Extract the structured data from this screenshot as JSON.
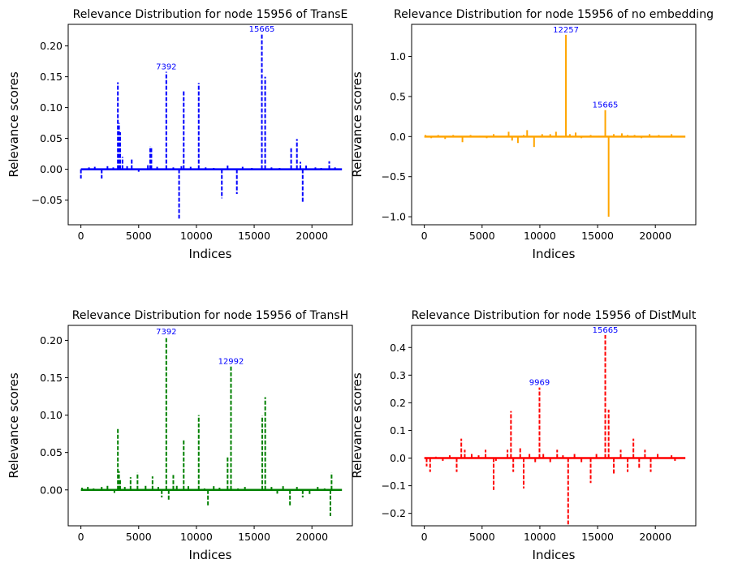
{
  "chart_data": [
    {
      "type": "line",
      "title": "Relevance Distribution for node  15956 of TransE",
      "xlabel": "Indices",
      "ylabel": "Relevance scores",
      "xlim": [
        -1100,
        23500
      ],
      "ylim": [
        -0.09,
        0.235
      ],
      "xticks": [
        0,
        5000,
        10000,
        15000,
        20000
      ],
      "yticks": [
        -0.05,
        0.0,
        0.05,
        0.1,
        0.15,
        0.2
      ],
      "ytick_labels": [
        "−0.05",
        "0.00",
        "0.05",
        "0.10",
        "0.15",
        "0.20"
      ],
      "color": "#0000ff",
      "line_style": "dashed",
      "x_max": 22600,
      "spikes": [
        [
          0,
          -0.015
        ],
        [
          700,
          0.003
        ],
        [
          1200,
          0.004
        ],
        [
          1800,
          -0.015
        ],
        [
          2300,
          0.005
        ],
        [
          2800,
          0.003
        ],
        [
          3200,
          0.141
        ],
        [
          3300,
          0.075
        ],
        [
          3400,
          0.06
        ],
        [
          3600,
          0.02
        ],
        [
          4000,
          0.005
        ],
        [
          4400,
          0.017
        ],
        [
          5000,
          -0.004
        ],
        [
          5800,
          0.008
        ],
        [
          6000,
          0.037
        ],
        [
          6100,
          0.035
        ],
        [
          6600,
          0.004
        ],
        [
          7392,
          0.158
        ],
        [
          8000,
          0.003
        ],
        [
          8500,
          -0.08
        ],
        [
          8700,
          0.005
        ],
        [
          8900,
          0.128
        ],
        [
          9500,
          0.004
        ],
        [
          10200,
          0.14
        ],
        [
          10800,
          0.003
        ],
        [
          11500,
          0.002
        ],
        [
          12200,
          -0.047
        ],
        [
          12700,
          0.006
        ],
        [
          13500,
          -0.04
        ],
        [
          14000,
          0.004
        ],
        [
          14800,
          0.002
        ],
        [
          15665,
          0.22
        ],
        [
          15950,
          0.15
        ],
        [
          16500,
          0.003
        ],
        [
          17200,
          0.002
        ],
        [
          18200,
          0.034
        ],
        [
          18700,
          0.049
        ],
        [
          19000,
          0.012
        ],
        [
          19200,
          -0.055
        ],
        [
          19500,
          0.006
        ],
        [
          20300,
          0.003
        ],
        [
          20800,
          0.002
        ],
        [
          21500,
          0.013
        ],
        [
          22000,
          0.003
        ]
      ],
      "annotations": [
        {
          "text": "7392",
          "x": 7392,
          "y": 0.158
        },
        {
          "text": "15665",
          "x": 15665,
          "y": 0.22
        }
      ]
    },
    {
      "type": "line",
      "title": "Relevance Distribution for node  15956 of no embedding",
      "xlabel": "Indices",
      "ylabel": "Relevance scores",
      "xlim": [
        -1100,
        23500
      ],
      "ylim": [
        -1.1,
        1.4
      ],
      "xticks": [
        0,
        5000,
        10000,
        15000,
        20000
      ],
      "yticks": [
        -1.0,
        -0.5,
        0.0,
        0.5,
        1.0
      ],
      "ytick_labels": [
        "−1.0",
        "−0.5",
        "0.0",
        "0.5",
        "1.0"
      ],
      "color": "#ffa500",
      "line_style": "solid",
      "x_max": 22600,
      "spikes": [
        [
          100,
          0.02
        ],
        [
          600,
          -0.02
        ],
        [
          1200,
          0.02
        ],
        [
          1800,
          -0.03
        ],
        [
          2500,
          0.02
        ],
        [
          3300,
          -0.07
        ],
        [
          4000,
          0.02
        ],
        [
          4800,
          0.01
        ],
        [
          5400,
          -0.02
        ],
        [
          6000,
          0.03
        ],
        [
          7300,
          0.06
        ],
        [
          7600,
          -0.05
        ],
        [
          8100,
          -0.08
        ],
        [
          8600,
          0.02
        ],
        [
          8900,
          0.08
        ],
        [
          9500,
          -0.13
        ],
        [
          10200,
          0.03
        ],
        [
          10900,
          0.03
        ],
        [
          11400,
          0.06
        ],
        [
          12257,
          1.27
        ],
        [
          12600,
          0.03
        ],
        [
          13100,
          0.05
        ],
        [
          13600,
          -0.02
        ],
        [
          14400,
          0.02
        ],
        [
          15100,
          0.01
        ],
        [
          15665,
          0.33
        ],
        [
          15956,
          -1.0
        ],
        [
          16400,
          0.03
        ],
        [
          17100,
          0.04
        ],
        [
          17600,
          0.02
        ],
        [
          18200,
          0.02
        ],
        [
          18800,
          -0.02
        ],
        [
          19500,
          0.03
        ],
        [
          20300,
          0.02
        ],
        [
          21400,
          0.03
        ]
      ],
      "annotations": [
        {
          "text": "12257",
          "x": 12257,
          "y": 1.27
        },
        {
          "text": "15665",
          "x": 15665,
          "y": 0.33
        }
      ]
    },
    {
      "type": "line",
      "title": "Relevance Distribution for node  15956 of TransH",
      "xlabel": "Indices",
      "ylabel": "Relevance scores",
      "xlim": [
        -1100,
        23500
      ],
      "ylim": [
        -0.048,
        0.22
      ],
      "xticks": [
        0,
        5000,
        10000,
        15000,
        20000
      ],
      "yticks": [
        0.0,
        0.05,
        0.1,
        0.15,
        0.2
      ],
      "ytick_labels": [
        "0.00",
        "0.05",
        "0.10",
        "0.15",
        "0.20"
      ],
      "color": "#008000",
      "line_style": "dashed",
      "x_max": 22600,
      "spikes": [
        [
          100,
          0.003
        ],
        [
          600,
          0.004
        ],
        [
          1100,
          0.002
        ],
        [
          1800,
          0.004
        ],
        [
          2300,
          0.007
        ],
        [
          2900,
          -0.004
        ],
        [
          3200,
          0.083
        ],
        [
          3300,
          0.025
        ],
        [
          3400,
          0.015
        ],
        [
          3800,
          0.004
        ],
        [
          4300,
          0.017
        ],
        [
          4900,
          0.023
        ],
        [
          5600,
          0.006
        ],
        [
          6200,
          0.018
        ],
        [
          6700,
          0.004
        ],
        [
          7000,
          -0.01
        ],
        [
          7392,
          0.205
        ],
        [
          7600,
          -0.014
        ],
        [
          8000,
          0.02
        ],
        [
          8300,
          0.006
        ],
        [
          8900,
          0.067
        ],
        [
          9300,
          0.005
        ],
        [
          10200,
          0.1
        ],
        [
          10700,
          0.002
        ],
        [
          11000,
          -0.022
        ],
        [
          11500,
          0.005
        ],
        [
          12000,
          0.003
        ],
        [
          12700,
          0.045
        ],
        [
          12992,
          0.165
        ],
        [
          13600,
          0.002
        ],
        [
          14200,
          0.004
        ],
        [
          15700,
          0.099
        ],
        [
          15956,
          0.124
        ],
        [
          16500,
          0.004
        ],
        [
          17000,
          -0.005
        ],
        [
          17500,
          0.005
        ],
        [
          18100,
          -0.022
        ],
        [
          18700,
          0.004
        ],
        [
          19200,
          -0.01
        ],
        [
          19800,
          -0.006
        ],
        [
          20500,
          0.004
        ],
        [
          21100,
          0.002
        ],
        [
          21600,
          -0.035
        ],
        [
          21700,
          0.023
        ]
      ],
      "annotations": [
        {
          "text": "7392",
          "x": 7392,
          "y": 0.205
        },
        {
          "text": "12992",
          "x": 12992,
          "y": 0.165
        }
      ]
    },
    {
      "type": "line",
      "title": "Relevance Distribution for node  15956 of DistMult",
      "xlabel": "Indices",
      "ylabel": "Relevance scores",
      "xlim": [
        -1100,
        23500
      ],
      "ylim": [
        -0.245,
        0.48
      ],
      "xticks": [
        0,
        5000,
        10000,
        15000,
        20000
      ],
      "yticks": [
        -0.2,
        -0.1,
        0.0,
        0.1,
        0.2,
        0.3,
        0.4
      ],
      "ytick_labels": [
        "−0.2",
        "−0.1",
        "0.0",
        "0.1",
        "0.2",
        "0.3",
        "0.4"
      ],
      "color": "#ff0000",
      "line_style": "dashed",
      "x_max": 22600,
      "spikes": [
        [
          200,
          -0.03
        ],
        [
          500,
          -0.05
        ],
        [
          1000,
          0.005
        ],
        [
          1600,
          -0.01
        ],
        [
          2200,
          0.01
        ],
        [
          2800,
          -0.05
        ],
        [
          3200,
          0.07
        ],
        [
          3500,
          0.03
        ],
        [
          4100,
          0.02
        ],
        [
          4700,
          0.01
        ],
        [
          5300,
          0.03
        ],
        [
          6000,
          -0.115
        ],
        [
          6200,
          -0.01
        ],
        [
          7200,
          0.03
        ],
        [
          7500,
          0.17
        ],
        [
          7700,
          -0.05
        ],
        [
          8300,
          0.04
        ],
        [
          8600,
          -0.11
        ],
        [
          9100,
          0.02
        ],
        [
          9600,
          -0.02
        ],
        [
          9969,
          0.255
        ],
        [
          10300,
          0.02
        ],
        [
          10900,
          -0.02
        ],
        [
          11500,
          0.03
        ],
        [
          12000,
          0.01
        ],
        [
          12450,
          -0.24
        ],
        [
          13000,
          0.02
        ],
        [
          13600,
          -0.02
        ],
        [
          14400,
          -0.09
        ],
        [
          14900,
          0.02
        ],
        [
          15665,
          0.445
        ],
        [
          15956,
          0.175
        ],
        [
          16400,
          -0.06
        ],
        [
          17000,
          0.03
        ],
        [
          17600,
          -0.05
        ],
        [
          18100,
          0.07
        ],
        [
          18600,
          -0.04
        ],
        [
          19100,
          0.03
        ],
        [
          19600,
          -0.05
        ],
        [
          20200,
          0.02
        ],
        [
          21400,
          0.01
        ],
        [
          21700,
          -0.01
        ]
      ],
      "annotations": [
        {
          "text": "9969",
          "x": 9969,
          "y": 0.255
        },
        {
          "text": "15665",
          "x": 15665,
          "y": 0.445
        }
      ]
    }
  ]
}
